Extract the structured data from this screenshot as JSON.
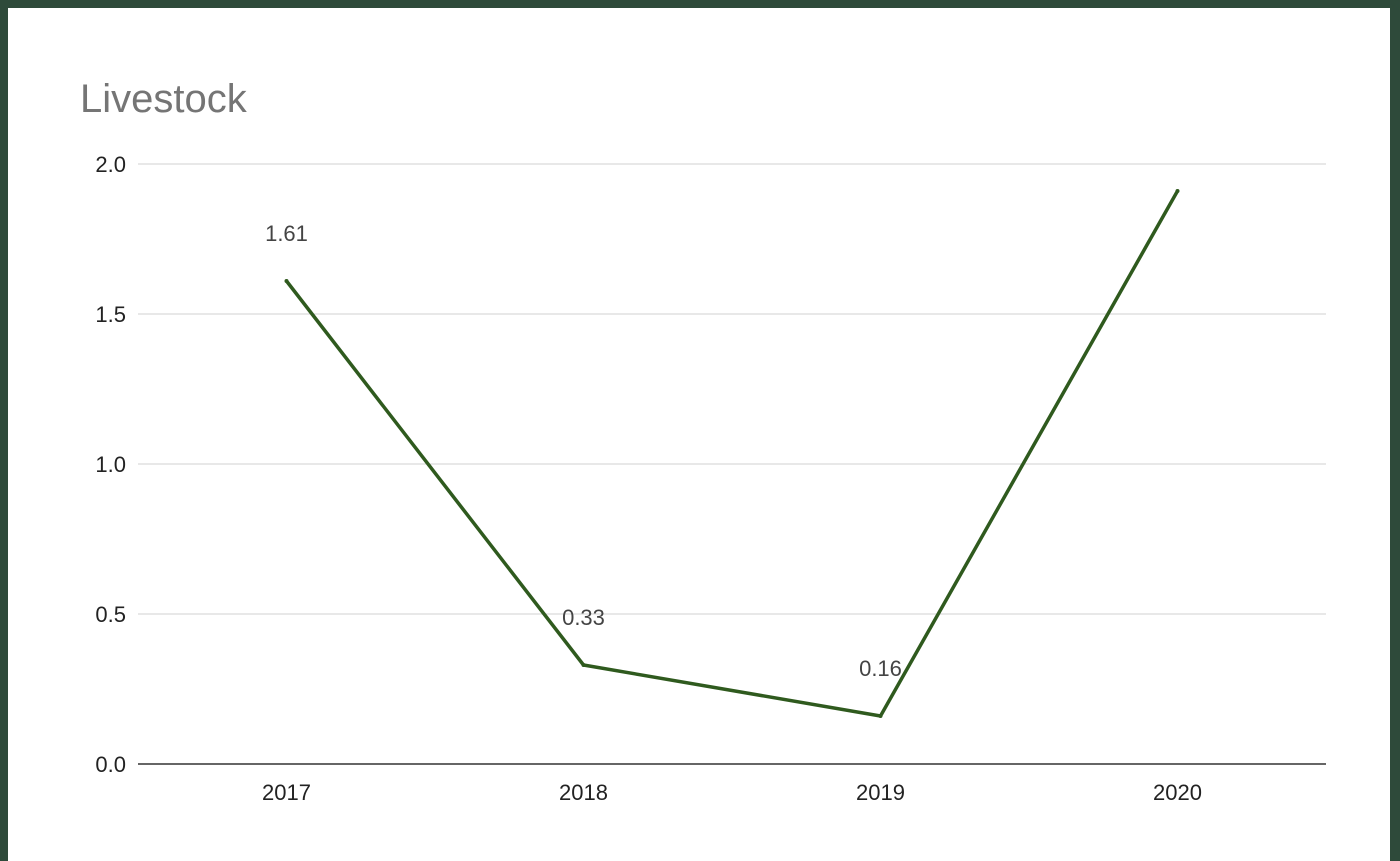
{
  "chart_data": {
    "type": "line",
    "title": "Livestock",
    "xlabel": "",
    "ylabel": "",
    "categories": [
      "2017",
      "2018",
      "2019",
      "2020"
    ],
    "series": [
      {
        "values": [
          1.61,
          0.33,
          0.16,
          1.91
        ],
        "data_labels": [
          "1.61",
          "0.33",
          "0.16",
          ""
        ],
        "color": "#2f5a1e"
      }
    ],
    "ylim": [
      0,
      2
    ],
    "y_ticks": [
      "0.0",
      "0.5",
      "1.0",
      "1.5",
      "2.0"
    ],
    "grid": true,
    "legend": "none"
  }
}
